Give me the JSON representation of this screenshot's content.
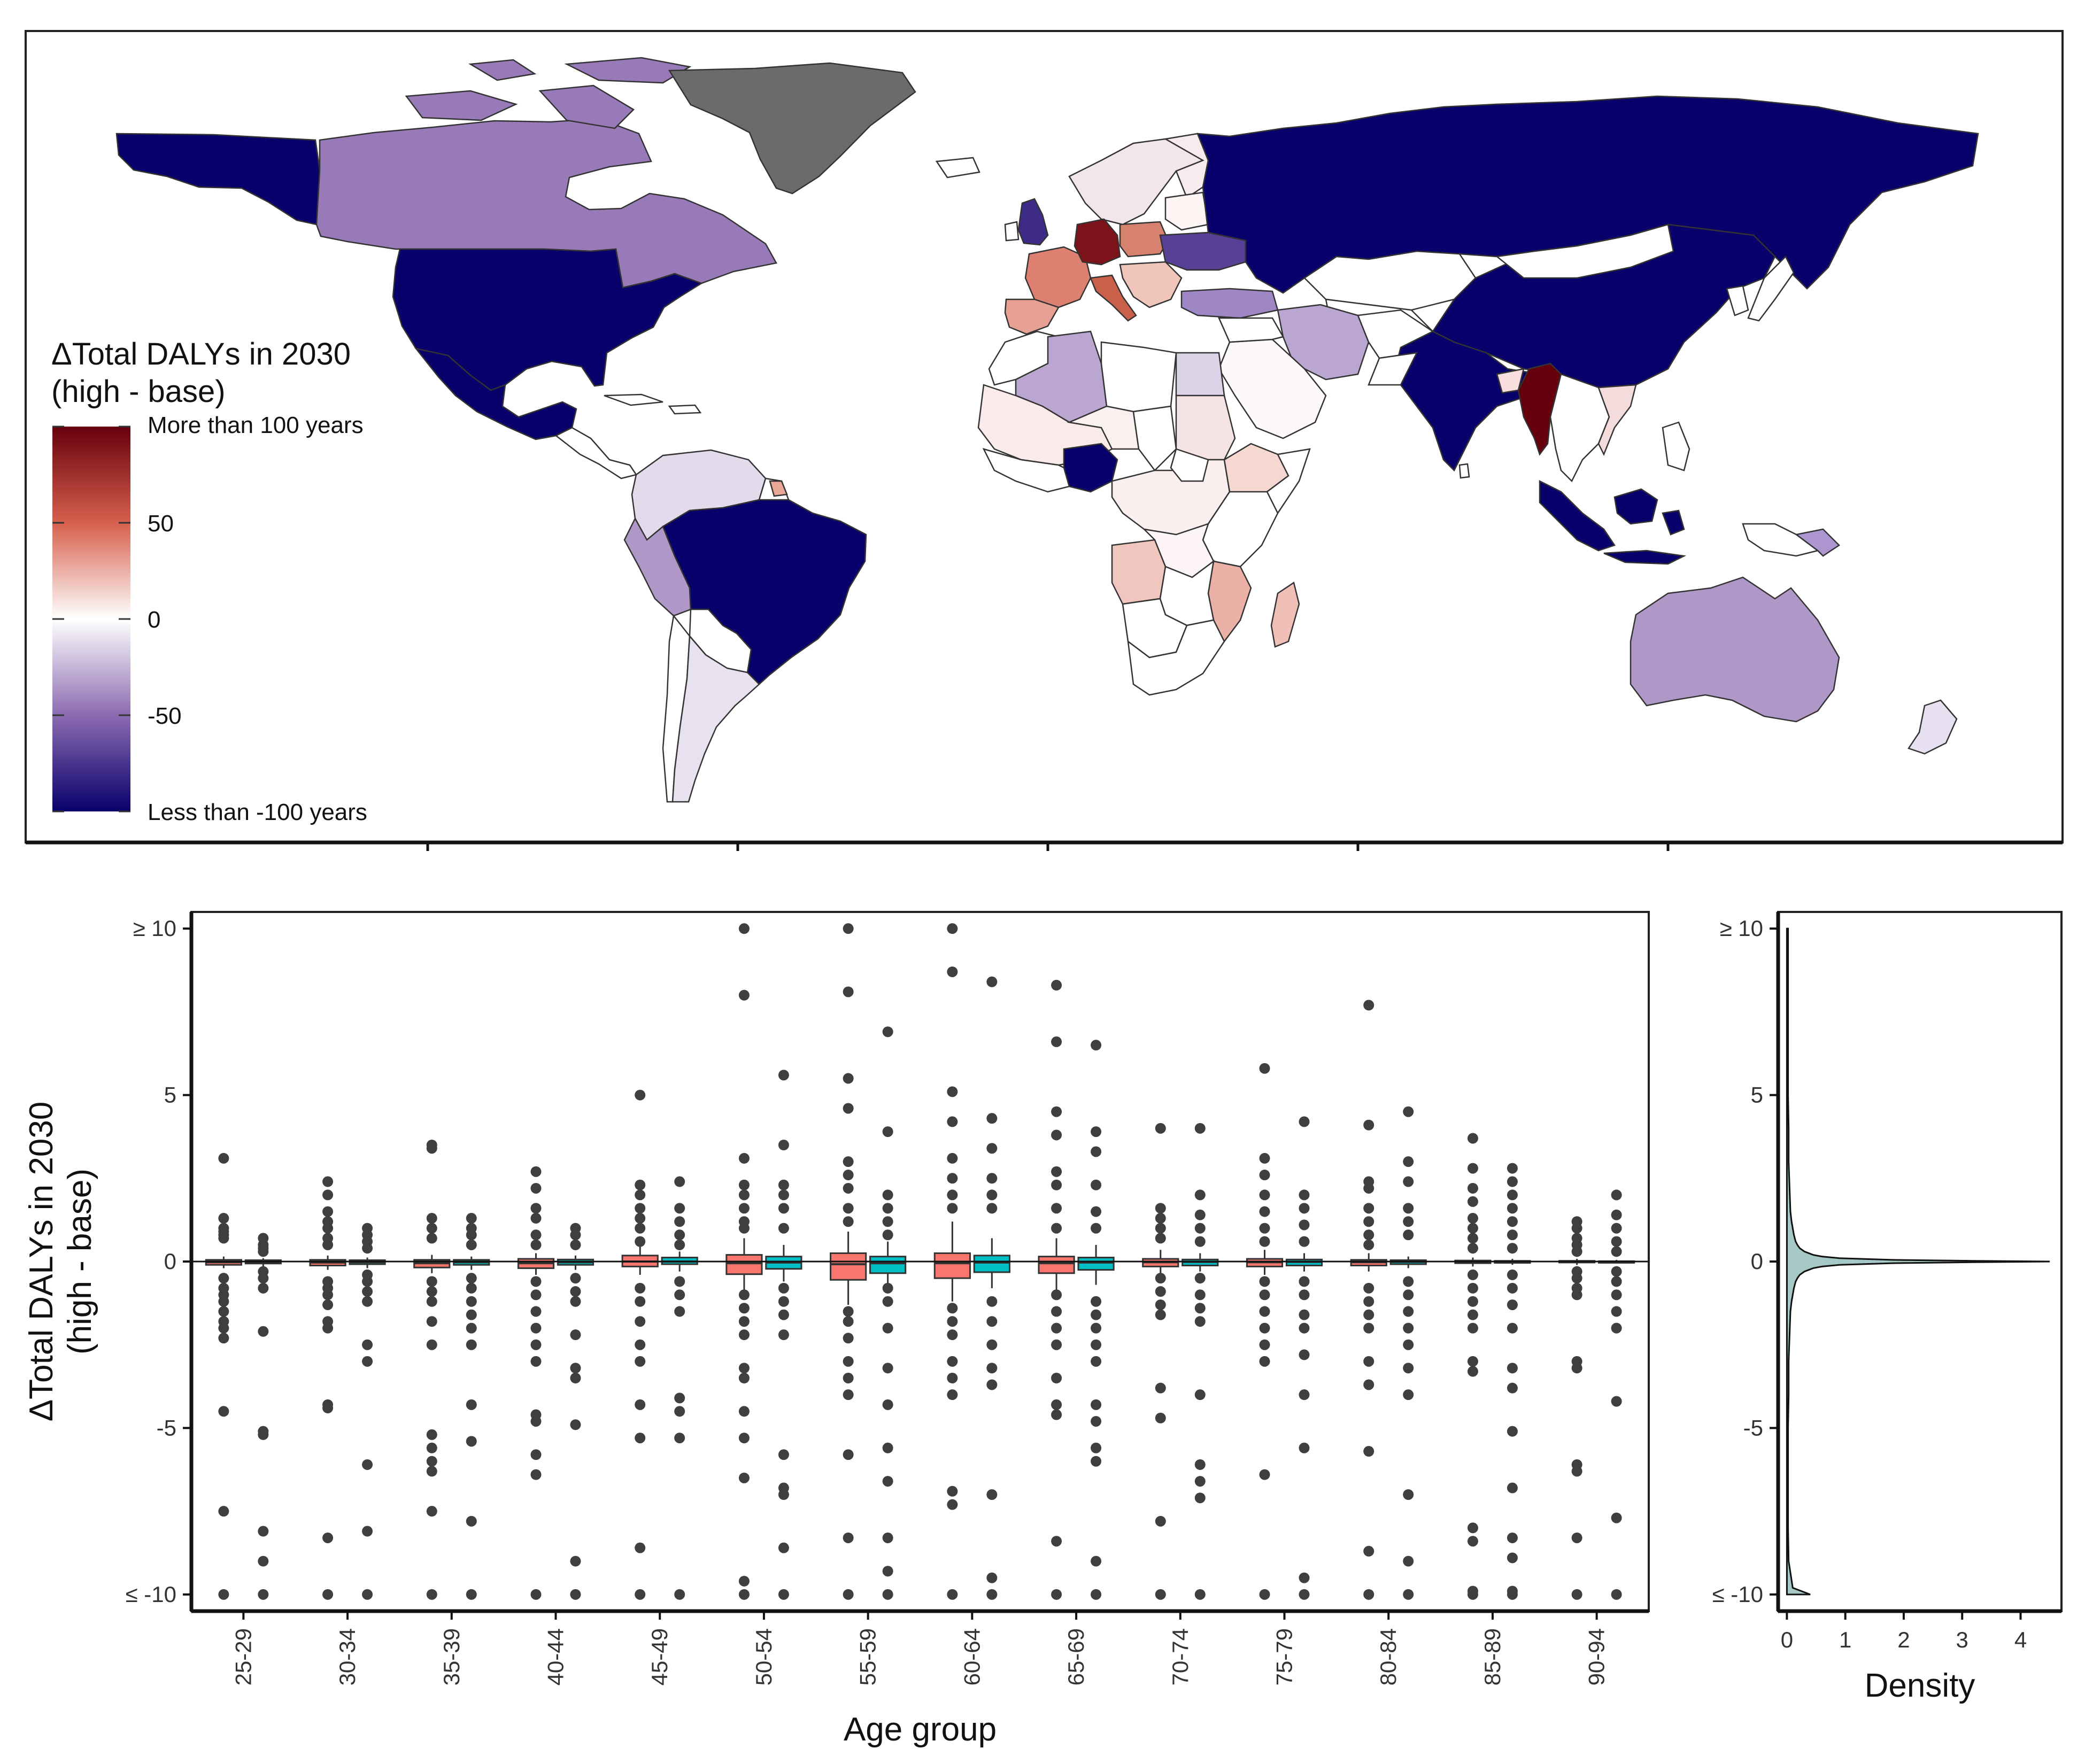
{
  "map": {
    "legend_title_line1": "ΔTotal DALYs in 2030",
    "legend_title_line2": "(high - base)",
    "legend_ticks": [
      "More than 100 years",
      "50",
      "0",
      "-50",
      "Less than -100 years"
    ],
    "legend_tick_values": [
      100,
      50,
      0,
      -50,
      -100
    ],
    "colors": {
      "high": "#67000d",
      "mid_high": "#d6604d",
      "zero": "#ffffff",
      "mid_low": "#8c6bb1",
      "low": "#08006b",
      "missing": "#6b6b6b"
    },
    "countries": [
      {
        "name": "usa",
        "value": -100
      },
      {
        "name": "canada",
        "value": -45
      },
      {
        "name": "alaska",
        "value": -100
      },
      {
        "name": "mexico",
        "value": -100
      },
      {
        "name": "greenland",
        "value": null
      },
      {
        "name": "brazil",
        "value": -100
      },
      {
        "name": "peru",
        "value": -35
      },
      {
        "name": "argentina",
        "value": -10
      },
      {
        "name": "colombia-venezuela",
        "value": -12
      },
      {
        "name": "russia",
        "value": -100
      },
      {
        "name": "china",
        "value": -100
      },
      {
        "name": "india",
        "value": -100
      },
      {
        "name": "myanmar",
        "value": 100
      },
      {
        "name": "indonesia",
        "value": -100
      },
      {
        "name": "australia",
        "value": -35
      },
      {
        "name": "nigeria",
        "value": -100
      },
      {
        "name": "algeria",
        "value": -30
      },
      {
        "name": "germany",
        "value": 90
      },
      {
        "name": "france",
        "value": 40
      },
      {
        "name": "spain",
        "value": 30
      },
      {
        "name": "ukraine",
        "value": -70
      },
      {
        "name": "uk",
        "value": -80
      },
      {
        "name": "madagascar",
        "value": 20
      },
      {
        "name": "mozambique",
        "value": 25
      },
      {
        "name": "angola",
        "value": 18
      },
      {
        "name": "saudi-arabia",
        "value": 2
      },
      {
        "name": "iran",
        "value": -30
      },
      {
        "name": "egypt",
        "value": -15
      },
      {
        "name": "south-africa",
        "value": 0
      }
    ]
  },
  "chart_data": [
    {
      "type": "box",
      "xlabel": "Age group",
      "ylabel_line1": "ΔTotal DALYs in 2030",
      "ylabel_line2": "(high - base)",
      "ylim": [
        -10.5,
        10.5
      ],
      "y_ticks": [
        {
          "value": 10,
          "label": "≥ 10"
        },
        {
          "value": 5,
          "label": "5"
        },
        {
          "value": 0,
          "label": "0"
        },
        {
          "value": -5,
          "label": "-5"
        },
        {
          "value": -10,
          "label": "≤ -10"
        }
      ],
      "categories": [
        "25-29",
        "30-34",
        "35-39",
        "40-44",
        "45-49",
        "50-54",
        "55-59",
        "60-64",
        "65-69",
        "70-74",
        "75-79",
        "80-84",
        "85-89",
        "90-94"
      ],
      "series_colors": [
        "#f8766d",
        "#00bfc4"
      ],
      "series": [
        {
          "boxes": [
            {
              "q1": -0.1,
              "med": -0.02,
              "q3": 0.05,
              "lo": -0.2,
              "hi": 0.15
            },
            {
              "q1": -0.12,
              "med": -0.03,
              "q3": 0.05,
              "lo": -0.25,
              "hi": 0.18
            },
            {
              "q1": -0.18,
              "med": -0.05,
              "q3": 0.05,
              "lo": -0.35,
              "hi": 0.2
            },
            {
              "q1": -0.2,
              "med": -0.05,
              "q3": 0.08,
              "lo": -0.4,
              "hi": 0.25
            },
            {
              "q1": -0.15,
              "med": 0.0,
              "q3": 0.18,
              "lo": -0.4,
              "hi": 0.45
            },
            {
              "q1": -0.38,
              "med": -0.05,
              "q3": 0.2,
              "lo": -0.9,
              "hi": 0.7
            },
            {
              "q1": -0.55,
              "med": -0.08,
              "q3": 0.25,
              "lo": -1.3,
              "hi": 0.9
            },
            {
              "q1": -0.5,
              "med": -0.05,
              "q3": 0.25,
              "lo": -1.2,
              "hi": 1.2
            },
            {
              "q1": -0.35,
              "med": -0.05,
              "q3": 0.15,
              "lo": -0.9,
              "hi": 0.7
            },
            {
              "q1": -0.15,
              "med": -0.02,
              "q3": 0.08,
              "lo": -0.4,
              "hi": 0.35
            },
            {
              "q1": -0.15,
              "med": -0.02,
              "q3": 0.08,
              "lo": -0.4,
              "hi": 0.35
            },
            {
              "q1": -0.12,
              "med": -0.02,
              "q3": 0.05,
              "lo": -0.3,
              "hi": 0.25
            },
            {
              "q1": -0.05,
              "med": -0.01,
              "q3": 0.03,
              "lo": -0.15,
              "hi": 0.12
            },
            {
              "q1": -0.03,
              "med": 0.0,
              "q3": 0.02,
              "lo": -0.1,
              "hi": 0.08
            }
          ],
          "outliers": [
            [
              3.1,
              1.3,
              1.0,
              0.9,
              0.8,
              0.7,
              -0.5,
              -0.8,
              -1.0,
              -1.2,
              -1.5,
              -1.8,
              -2.0,
              -2.3,
              -4.5,
              -7.5,
              -10
            ],
            [
              2.4,
              2.0,
              1.5,
              1.2,
              1.0,
              0.7,
              0.5,
              -0.6,
              -0.8,
              -1.0,
              -1.3,
              -1.8,
              -2.0,
              -4.3,
              -4.4,
              -8.3,
              -10
            ],
            [
              3.5,
              3.4,
              1.3,
              1.0,
              0.7,
              -0.6,
              -0.9,
              -1.2,
              -1.8,
              -2.5,
              -5.2,
              -5.6,
              -6.0,
              -6.3,
              -7.5,
              -10
            ],
            [
              2.7,
              2.2,
              1.6,
              1.3,
              0.8,
              0.5,
              -0.6,
              -1.0,
              -1.5,
              -2.0,
              -2.5,
              -3.0,
              -4.6,
              -4.8,
              -5.8,
              -6.4,
              -10
            ],
            [
              5.0,
              2.3,
              2.0,
              1.6,
              1.3,
              1.0,
              0.6,
              -0.8,
              -1.2,
              -1.8,
              -2.5,
              -3.0,
              -4.3,
              -5.3,
              -8.6,
              -10
            ],
            [
              10,
              8.0,
              3.1,
              2.3,
              2.0,
              1.6,
              1.2,
              1.0,
              -1.0,
              -1.4,
              -1.8,
              -2.2,
              -3.2,
              -3.5,
              -4.5,
              -5.3,
              -6.5,
              -9.6,
              -10
            ],
            [
              10,
              8.1,
              5.5,
              4.6,
              3.0,
              2.6,
              2.2,
              1.6,
              1.2,
              -1.5,
              -1.8,
              -2.3,
              -3.0,
              -3.5,
              -4.0,
              -5.8,
              -8.3,
              -10
            ],
            [
              10,
              8.7,
              5.1,
              4.2,
              3.1,
              2.5,
              2.0,
              1.6,
              -1.4,
              -1.8,
              -2.2,
              -3.0,
              -3.5,
              -4.0,
              -6.9,
              -7.3,
              -10
            ],
            [
              8.3,
              6.6,
              4.5,
              3.8,
              2.7,
              2.3,
              1.6,
              1.0,
              -1.0,
              -1.5,
              -2.0,
              -2.5,
              -3.5,
              -4.3,
              -4.6,
              -8.4,
              -10
            ],
            [
              4.0,
              1.6,
              1.3,
              1.0,
              0.7,
              -0.5,
              -0.9,
              -1.3,
              -1.6,
              -3.8,
              -4.7,
              -7.8,
              -10
            ],
            [
              5.8,
              3.1,
              2.6,
              2.0,
              1.5,
              1.0,
              0.6,
              -0.6,
              -1.0,
              -1.5,
              -2.0,
              -2.5,
              -3.0,
              -6.4,
              -10
            ],
            [
              7.7,
              4.1,
              2.4,
              2.2,
              1.6,
              1.2,
              0.8,
              0.5,
              -0.8,
              -1.2,
              -1.6,
              -2.0,
              -3.0,
              -3.7,
              -5.7,
              -8.7,
              -10
            ],
            [
              3.7,
              2.8,
              2.2,
              1.8,
              1.3,
              1.0,
              0.7,
              0.4,
              -0.4,
              -0.8,
              -1.2,
              -1.6,
              -2.0,
              -3.0,
              -3.3,
              -8.0,
              -8.4,
              -9.9,
              -10
            ],
            [
              1.2,
              1.0,
              0.7,
              0.5,
              0.3,
              -0.3,
              -0.5,
              -0.8,
              -1.0,
              -3.0,
              -3.2,
              -6.1,
              -6.3,
              -8.3,
              -10
            ]
          ]
        },
        {
          "boxes": [
            {
              "q1": -0.06,
              "med": -0.01,
              "q3": 0.04,
              "lo": -0.15,
              "hi": 0.1
            },
            {
              "q1": -0.08,
              "med": -0.02,
              "q3": 0.04,
              "lo": -0.2,
              "hi": 0.12
            },
            {
              "q1": -0.1,
              "med": -0.02,
              "q3": 0.05,
              "lo": -0.25,
              "hi": 0.15
            },
            {
              "q1": -0.1,
              "med": -0.02,
              "q3": 0.06,
              "lo": -0.25,
              "hi": 0.18
            },
            {
              "q1": -0.08,
              "med": 0.0,
              "q3": 0.12,
              "lo": -0.3,
              "hi": 0.3
            },
            {
              "q1": -0.22,
              "med": -0.03,
              "q3": 0.15,
              "lo": -0.6,
              "hi": 0.5
            },
            {
              "q1": -0.35,
              "med": -0.05,
              "q3": 0.15,
              "lo": -0.9,
              "hi": 0.6
            },
            {
              "q1": -0.32,
              "med": -0.03,
              "q3": 0.18,
              "lo": -0.8,
              "hi": 0.7
            },
            {
              "q1": -0.25,
              "med": -0.03,
              "q3": 0.12,
              "lo": -0.7,
              "hi": 0.5
            },
            {
              "q1": -0.12,
              "med": -0.01,
              "q3": 0.06,
              "lo": -0.3,
              "hi": 0.25
            },
            {
              "q1": -0.12,
              "med": -0.01,
              "q3": 0.06,
              "lo": -0.3,
              "hi": 0.25
            },
            {
              "q1": -0.08,
              "med": -0.01,
              "q3": 0.04,
              "lo": -0.2,
              "hi": 0.15
            },
            {
              "q1": -0.04,
              "med": 0.0,
              "q3": 0.02,
              "lo": -0.1,
              "hi": 0.08
            },
            {
              "q1": -0.02,
              "med": 0.0,
              "q3": 0.01,
              "lo": -0.06,
              "hi": 0.05
            }
          ],
          "outliers": [
            [
              0.7,
              0.5,
              0.4,
              0.3,
              -0.3,
              -0.5,
              -0.8,
              -2.1,
              -5.1,
              -5.2,
              -8.1,
              -9.0,
              -10
            ],
            [
              1.0,
              0.8,
              0.6,
              0.4,
              -0.4,
              -0.6,
              -0.9,
              -1.2,
              -2.5,
              -3.0,
              -6.1,
              -8.1,
              -10
            ],
            [
              1.3,
              1.0,
              0.8,
              0.5,
              -0.5,
              -0.8,
              -1.2,
              -1.6,
              -2.0,
              -2.5,
              -4.3,
              -5.4,
              -7.8,
              -10
            ],
            [
              1.0,
              0.8,
              0.5,
              -0.5,
              -0.9,
              -1.2,
              -2.2,
              -3.2,
              -3.5,
              -4.9,
              -9.0,
              -10
            ],
            [
              2.4,
              1.6,
              1.2,
              0.8,
              0.5,
              -0.6,
              -1.0,
              -1.5,
              -4.1,
              -4.5,
              -5.3,
              -10
            ],
            [
              5.6,
              3.5,
              2.3,
              2.0,
              1.6,
              1.0,
              -0.8,
              -1.2,
              -1.6,
              -2.2,
              -5.8,
              -6.8,
              -7.0,
              -8.6,
              -10
            ],
            [
              6.9,
              3.9,
              2.0,
              1.6,
              1.2,
              0.8,
              -0.8,
              -1.2,
              -2.0,
              -3.2,
              -4.3,
              -5.6,
              -6.6,
              -8.3,
              -9.3,
              -10
            ],
            [
              8.4,
              4.3,
              3.4,
              2.5,
              2.0,
              1.6,
              -1.2,
              -1.8,
              -2.5,
              -3.2,
              -3.7,
              -7.0,
              -9.5,
              -10
            ],
            [
              6.5,
              3.9,
              3.3,
              2.3,
              1.5,
              1.0,
              -1.2,
              -1.6,
              -2.0,
              -2.5,
              -3.0,
              -4.3,
              -4.8,
              -5.6,
              -6.0,
              -9.0,
              -10
            ],
            [
              4.0,
              2.0,
              1.4,
              1.0,
              0.6,
              -0.5,
              -1.0,
              -1.4,
              -1.8,
              -4.0,
              -6.1,
              -6.6,
              -7.1,
              -10
            ],
            [
              4.2,
              2.0,
              1.6,
              1.1,
              0.6,
              -0.6,
              -1.0,
              -1.6,
              -2.0,
              -2.8,
              -4.0,
              -5.6,
              -9.5,
              -10
            ],
            [
              4.5,
              3.0,
              2.4,
              1.6,
              1.2,
              0.8,
              -0.6,
              -1.0,
              -1.5,
              -2.0,
              -2.5,
              -3.2,
              -4.0,
              -7.0,
              -9.0,
              -10
            ],
            [
              2.8,
              2.4,
              2.0,
              1.6,
              1.2,
              0.8,
              0.4,
              -0.4,
              -0.8,
              -1.3,
              -2.0,
              -3.2,
              -3.8,
              -5.1,
              -6.8,
              -8.3,
              -8.9,
              -9.9,
              -10
            ],
            [
              2.0,
              1.4,
              1.0,
              0.6,
              0.3,
              -0.3,
              -0.6,
              -1.0,
              -1.5,
              -2.0,
              -4.2,
              -7.7,
              -10
            ]
          ]
        }
      ]
    },
    {
      "type": "area",
      "xlabel": "Density",
      "x_ticks": [
        0,
        1,
        2,
        3,
        4
      ],
      "xlim": [
        -0.15,
        4.7
      ],
      "ylim": [
        -10.5,
        10.5
      ],
      "y_ticks": [
        {
          "value": 10,
          "label": "≥ 10"
        },
        {
          "value": 5,
          "label": "5"
        },
        {
          "value": 0,
          "label": "0"
        },
        {
          "value": -5,
          "label": "-5"
        },
        {
          "value": -10,
          "label": "≤ -10"
        }
      ],
      "fill": "#a6c8c6",
      "y": [
        10,
        9,
        8,
        7,
        6,
        5,
        4,
        3,
        2.5,
        2,
        1.5,
        1.2,
        1.0,
        0.8,
        0.6,
        0.5,
        0.4,
        0.3,
        0.2,
        0.15,
        0.1,
        0.05,
        0.02,
        0,
        -0.02,
        -0.05,
        -0.1,
        -0.15,
        -0.2,
        -0.3,
        -0.4,
        -0.5,
        -0.6,
        -0.8,
        -1.0,
        -1.2,
        -1.5,
        -2,
        -2.5,
        -3,
        -4,
        -5,
        -6,
        -7,
        -8,
        -9,
        -9.8,
        -10
      ],
      "density": [
        0.02,
        0.02,
        0.02,
        0.02,
        0.02,
        0.02,
        0.03,
        0.03,
        0.04,
        0.05,
        0.06,
        0.08,
        0.1,
        0.12,
        0.15,
        0.18,
        0.22,
        0.3,
        0.45,
        0.6,
        0.9,
        1.8,
        3.2,
        4.5,
        3.2,
        1.8,
        0.9,
        0.6,
        0.45,
        0.3,
        0.22,
        0.18,
        0.15,
        0.12,
        0.1,
        0.08,
        0.06,
        0.05,
        0.04,
        0.03,
        0.03,
        0.02,
        0.02,
        0.02,
        0.02,
        0.03,
        0.1,
        0.4
      ]
    }
  ]
}
